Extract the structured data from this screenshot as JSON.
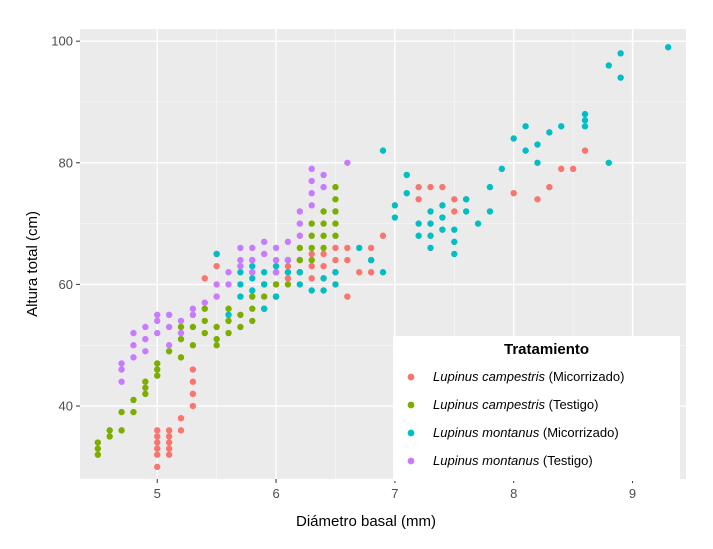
{
  "chart_data": {
    "type": "scatter",
    "title": "",
    "xlabel": "Diámetro basal (mm)",
    "ylabel": "Altura total (cm)",
    "xlim": [
      4.35,
      9.45
    ],
    "ylim": [
      28,
      102
    ],
    "x_ticks": [
      5,
      6,
      7,
      8,
      9
    ],
    "x_tick_labels": [
      "5",
      "6",
      "7",
      "8",
      "9"
    ],
    "y_ticks": [
      40,
      60,
      80,
      100
    ],
    "y_tick_labels": [
      "40",
      "60",
      "80",
      "100"
    ],
    "grid": true,
    "legend": {
      "title": "Tratamiento",
      "position": "bottom-right-inside"
    },
    "series": [
      {
        "name": "Lupinus campestris (Micorrizado)",
        "species": "Lupinus campestris",
        "treatment": "(Micorrizado)",
        "color": "#F8766D",
        "points": [
          [
            5.0,
            30
          ],
          [
            5.0,
            32
          ],
          [
            5.0,
            33
          ],
          [
            5.0,
            34
          ],
          [
            5.0,
            35
          ],
          [
            5.0,
            36
          ],
          [
            5.1,
            32
          ],
          [
            5.1,
            33
          ],
          [
            5.1,
            34
          ],
          [
            5.1,
            35
          ],
          [
            5.1,
            36
          ],
          [
            5.2,
            36
          ],
          [
            5.2,
            38
          ],
          [
            5.3,
            40
          ],
          [
            5.3,
            42
          ],
          [
            5.3,
            44
          ],
          [
            5.3,
            46
          ],
          [
            5.4,
            61
          ],
          [
            5.5,
            63
          ],
          [
            5.5,
            65
          ],
          [
            5.7,
            63
          ],
          [
            5.8,
            62
          ],
          [
            5.8,
            64
          ],
          [
            6.0,
            60
          ],
          [
            6.0,
            62
          ],
          [
            6.0,
            64
          ],
          [
            6.1,
            61
          ],
          [
            6.1,
            63
          ],
          [
            6.2,
            62
          ],
          [
            6.2,
            64
          ],
          [
            6.3,
            61
          ],
          [
            6.3,
            63
          ],
          [
            6.3,
            65
          ],
          [
            6.4,
            61
          ],
          [
            6.4,
            63
          ],
          [
            6.4,
            65
          ],
          [
            6.5,
            62
          ],
          [
            6.5,
            64
          ],
          [
            6.5,
            66
          ],
          [
            6.6,
            58
          ],
          [
            6.6,
            64
          ],
          [
            6.6,
            66
          ],
          [
            6.7,
            62
          ],
          [
            6.8,
            62
          ],
          [
            6.8,
            64
          ],
          [
            6.8,
            66
          ],
          [
            6.9,
            68
          ],
          [
            7.2,
            74
          ],
          [
            7.2,
            76
          ],
          [
            7.3,
            76
          ],
          [
            7.4,
            76
          ],
          [
            7.5,
            72
          ],
          [
            7.5,
            74
          ],
          [
            7.6,
            74
          ],
          [
            8.0,
            75
          ],
          [
            8.2,
            74
          ],
          [
            8.3,
            76
          ],
          [
            8.4,
            79
          ],
          [
            8.5,
            79
          ],
          [
            8.6,
            82
          ]
        ]
      },
      {
        "name": "Lupinus campestris (Testigo)",
        "species": "Lupinus campestris",
        "treatment": "(Testigo)",
        "color": "#7CAE00",
        "points": [
          [
            4.5,
            32
          ],
          [
            4.5,
            33
          ],
          [
            4.5,
            34
          ],
          [
            4.6,
            35
          ],
          [
            4.6,
            36
          ],
          [
            4.7,
            36
          ],
          [
            4.7,
            39
          ],
          [
            4.8,
            39
          ],
          [
            4.8,
            41
          ],
          [
            4.9,
            42
          ],
          [
            4.9,
            43
          ],
          [
            4.9,
            44
          ],
          [
            5.0,
            45
          ],
          [
            5.0,
            46
          ],
          [
            5.0,
            47
          ],
          [
            5.1,
            49
          ],
          [
            5.2,
            48
          ],
          [
            5.2,
            51
          ],
          [
            5.2,
            53
          ],
          [
            5.3,
            53
          ],
          [
            5.3,
            50
          ],
          [
            5.4,
            52
          ],
          [
            5.4,
            54
          ],
          [
            5.4,
            56
          ],
          [
            5.5,
            50
          ],
          [
            5.5,
            51
          ],
          [
            5.5,
            53
          ],
          [
            5.6,
            52
          ],
          [
            5.6,
            54
          ],
          [
            5.6,
            56
          ],
          [
            5.7,
            53
          ],
          [
            5.7,
            55
          ],
          [
            5.8,
            54
          ],
          [
            5.8,
            56
          ],
          [
            5.8,
            58
          ],
          [
            5.9,
            56
          ],
          [
            5.9,
            58
          ],
          [
            5.9,
            60
          ],
          [
            6.0,
            58
          ],
          [
            6.0,
            60
          ],
          [
            6.0,
            62
          ],
          [
            6.1,
            60
          ],
          [
            6.1,
            62
          ],
          [
            6.1,
            64
          ],
          [
            6.2,
            62
          ],
          [
            6.2,
            64
          ],
          [
            6.2,
            66
          ],
          [
            6.3,
            64
          ],
          [
            6.3,
            66
          ],
          [
            6.3,
            68
          ],
          [
            6.3,
            70
          ],
          [
            6.4,
            66
          ],
          [
            6.4,
            68
          ],
          [
            6.4,
            70
          ],
          [
            6.4,
            72
          ],
          [
            6.5,
            68
          ],
          [
            6.5,
            70
          ],
          [
            6.5,
            72
          ],
          [
            6.5,
            74
          ],
          [
            6.5,
            76
          ]
        ]
      },
      {
        "name": "Lupinus montanus (Micorrizado)",
        "species": "Lupinus montanus",
        "treatment": "(Micorrizado)",
        "color": "#00BFC4",
        "points": [
          [
            5.5,
            65
          ],
          [
            5.6,
            55
          ],
          [
            5.7,
            58
          ],
          [
            5.7,
            60
          ],
          [
            5.7,
            62
          ],
          [
            5.8,
            59
          ],
          [
            5.8,
            61
          ],
          [
            5.8,
            63
          ],
          [
            5.9,
            56
          ],
          [
            5.9,
            60
          ],
          [
            5.9,
            62
          ],
          [
            6.0,
            58
          ],
          [
            6.0,
            63
          ],
          [
            6.1,
            62
          ],
          [
            6.1,
            64
          ],
          [
            6.2,
            60
          ],
          [
            6.2,
            62
          ],
          [
            6.3,
            59
          ],
          [
            6.4,
            59
          ],
          [
            6.4,
            61
          ],
          [
            6.5,
            60
          ],
          [
            6.5,
            62
          ],
          [
            6.7,
            66
          ],
          [
            6.8,
            64
          ],
          [
            6.9,
            62
          ],
          [
            6.9,
            82
          ],
          [
            7.0,
            71
          ],
          [
            7.0,
            73
          ],
          [
            7.1,
            75
          ],
          [
            7.1,
            78
          ],
          [
            7.2,
            68
          ],
          [
            7.2,
            70
          ],
          [
            7.3,
            66
          ],
          [
            7.3,
            68
          ],
          [
            7.3,
            70
          ],
          [
            7.3,
            72
          ],
          [
            7.4,
            69
          ],
          [
            7.4,
            71
          ],
          [
            7.4,
            73
          ],
          [
            7.5,
            65
          ],
          [
            7.5,
            67
          ],
          [
            7.5,
            69
          ],
          [
            7.6,
            72
          ],
          [
            7.6,
            74
          ],
          [
            7.7,
            70
          ],
          [
            7.8,
            72
          ],
          [
            7.8,
            76
          ],
          [
            7.9,
            79
          ],
          [
            8.0,
            84
          ],
          [
            8.1,
            82
          ],
          [
            8.1,
            86
          ],
          [
            8.2,
            80
          ],
          [
            8.2,
            83
          ],
          [
            8.3,
            85
          ],
          [
            8.4,
            86
          ],
          [
            8.6,
            86
          ],
          [
            8.6,
            88
          ],
          [
            8.6,
            87
          ],
          [
            8.8,
            80
          ],
          [
            8.8,
            96
          ],
          [
            8.9,
            94
          ],
          [
            8.9,
            98
          ],
          [
            9.3,
            99
          ]
        ]
      },
      {
        "name": "Lupinus montanus (Testigo)",
        "species": "Lupinus montanus",
        "treatment": "(Testigo)",
        "color": "#C77CFF",
        "points": [
          [
            4.7,
            44
          ],
          [
            4.7,
            46
          ],
          [
            4.7,
            47
          ],
          [
            4.8,
            48
          ],
          [
            4.8,
            50
          ],
          [
            4.8,
            52
          ],
          [
            4.9,
            49
          ],
          [
            4.9,
            51
          ],
          [
            4.9,
            53
          ],
          [
            5.0,
            52
          ],
          [
            5.0,
            54
          ],
          [
            5.0,
            55
          ],
          [
            5.1,
            50
          ],
          [
            5.1,
            53
          ],
          [
            5.1,
            55
          ],
          [
            5.2,
            52
          ],
          [
            5.2,
            54
          ],
          [
            5.3,
            55
          ],
          [
            5.3,
            56
          ],
          [
            5.4,
            57
          ],
          [
            5.5,
            58
          ],
          [
            5.5,
            60
          ],
          [
            5.6,
            60
          ],
          [
            5.6,
            62
          ],
          [
            5.7,
            63
          ],
          [
            5.7,
            64
          ],
          [
            5.7,
            66
          ],
          [
            5.8,
            62
          ],
          [
            5.8,
            64
          ],
          [
            5.8,
            66
          ],
          [
            5.9,
            65
          ],
          [
            5.9,
            67
          ],
          [
            6.0,
            62
          ],
          [
            6.0,
            64
          ],
          [
            6.0,
            66
          ],
          [
            6.1,
            64
          ],
          [
            6.1,
            67
          ],
          [
            6.2,
            68
          ],
          [
            6.2,
            70
          ],
          [
            6.2,
            72
          ],
          [
            6.3,
            73
          ],
          [
            6.3,
            75
          ],
          [
            6.3,
            77
          ],
          [
            6.3,
            79
          ],
          [
            6.4,
            76
          ],
          [
            6.4,
            78
          ],
          [
            6.6,
            80
          ]
        ]
      }
    ]
  }
}
